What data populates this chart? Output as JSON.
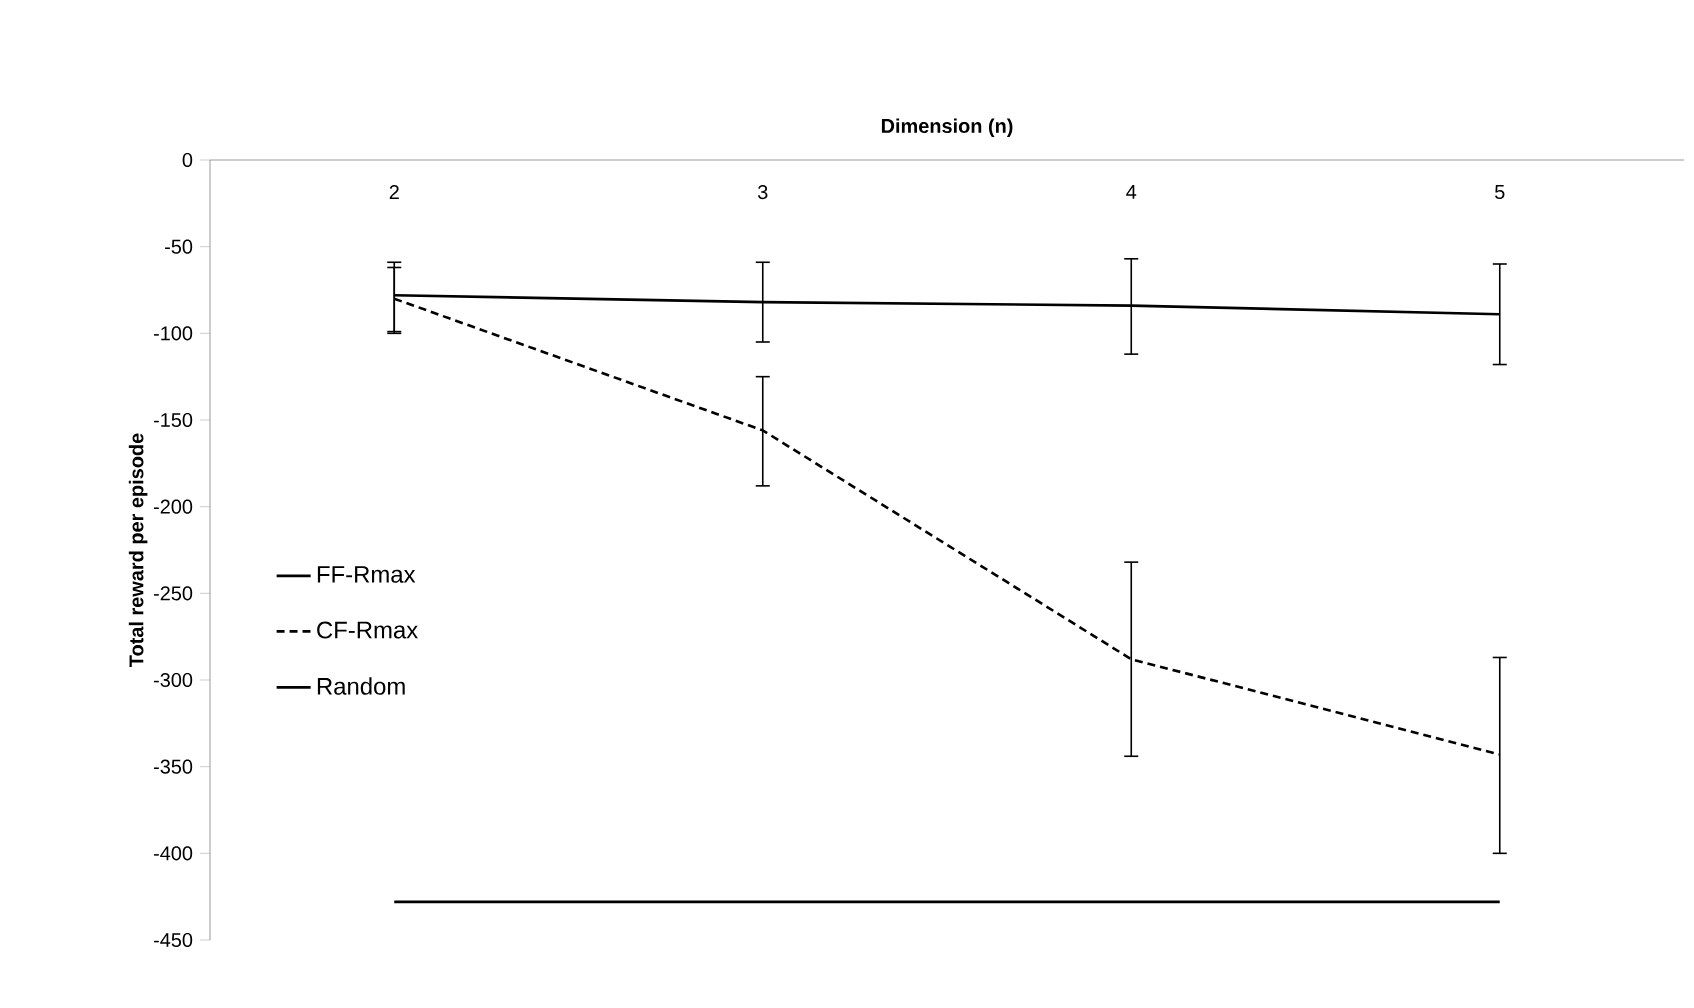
{
  "chart_data": {
    "type": "line",
    "xlabel": "Dimension (n)",
    "ylabel": "Total reward per episode",
    "categories": [
      "2",
      "3",
      "4",
      "5"
    ],
    "series": [
      {
        "name": "FF-Rmax",
        "color": "#000000",
        "line_style": "solid",
        "values": [
          -78,
          -82,
          -84,
          -89
        ],
        "errors": [
          [
            -99,
            -59
          ],
          [
            -105,
            -59
          ],
          [
            -112,
            -57
          ],
          [
            -118,
            -60
          ]
        ]
      },
      {
        "name": "CF-Rmax",
        "color": "#000000",
        "line_style": "dashed",
        "values": [
          -80,
          -156,
          -288,
          -343
        ],
        "errors": [
          [
            -100,
            -62
          ],
          [
            -188,
            -125
          ],
          [
            -344,
            -232
          ],
          [
            -400,
            -287
          ]
        ]
      },
      {
        "name": "Random",
        "color": "#000000",
        "line_style": "solid",
        "values": [
          -428,
          -428,
          -428,
          -428
        ]
      }
    ],
    "ylim": [
      -450,
      0
    ],
    "yticks": [
      -450,
      -400,
      -350,
      -300,
      -250,
      -200,
      -150,
      -100,
      -50,
      0
    ],
    "legend": "left",
    "grid": false,
    "marker": "none"
  }
}
